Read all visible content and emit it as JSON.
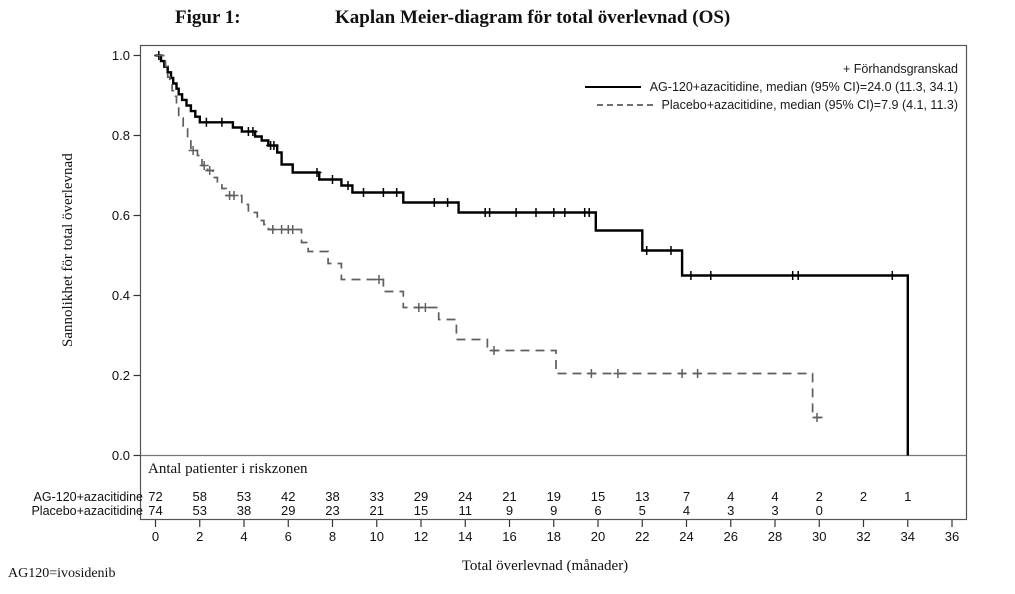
{
  "title": {
    "label": "Figur 1:",
    "text": "Kaplan Meier-diagram för total överlevnad (OS)"
  },
  "footnote": "AG120=ivosidenib",
  "chart_data": {
    "type": "line",
    "subtype": "kaplan-meier-step",
    "title": "Kaplan Meier-diagram för total överlevnad (OS)",
    "xlabel": "Total överlevnad (månader)",
    "ylabel": "Sannolikhet för total överlevnad",
    "xlim": [
      0,
      36
    ],
    "ylim": [
      0.0,
      1.0
    ],
    "x_ticks": [
      0,
      2,
      4,
      6,
      8,
      10,
      12,
      14,
      16,
      18,
      20,
      22,
      24,
      26,
      28,
      30,
      32,
      34,
      36
    ],
    "y_tick_labels": [
      "0.0",
      "0.2",
      "0.4",
      "0.6",
      "0.8",
      "1.0"
    ],
    "grid": false,
    "legend_position": "top-right-inside",
    "legend": {
      "censor_note": "+ Förhandsgranskad",
      "entries": [
        {
          "label": "AG-120+azacitidine, median (95% CI)=24.0 (11.3, 34.1)",
          "line": "solid",
          "color": "#000000"
        },
        {
          "label": "Placebo+azacitidine, median (95% CI)=7.9 (4.1, 11.3)",
          "line": "dashed",
          "color": "#5f5f5f"
        }
      ]
    },
    "series": [
      {
        "name": "AG-120+azacitidine",
        "line": "solid",
        "color": "#000000",
        "median_95ci": "24.0 (11.3, 34.1)",
        "steps": [
          [
            0,
            1.0
          ],
          [
            0.25,
            0.986
          ],
          [
            0.4,
            0.972
          ],
          [
            0.55,
            0.958
          ],
          [
            0.7,
            0.944
          ],
          [
            0.8,
            0.93
          ],
          [
            0.95,
            0.917
          ],
          [
            1.05,
            0.903
          ],
          [
            1.2,
            0.889
          ],
          [
            1.4,
            0.875
          ],
          [
            1.6,
            0.861
          ],
          [
            1.8,
            0.847
          ],
          [
            2.0,
            0.833
          ],
          [
            3.5,
            0.82
          ],
          [
            3.9,
            0.81
          ],
          [
            4.5,
            0.7975
          ],
          [
            4.8,
            0.7875
          ],
          [
            5.1,
            0.775
          ],
          [
            5.5,
            0.7575
          ],
          [
            5.7,
            0.7275
          ],
          [
            6.2,
            0.7075
          ],
          [
            7.4,
            0.69
          ],
          [
            8.4,
            0.675
          ],
          [
            8.9,
            0.6575
          ],
          [
            11.2,
            0.6325
          ],
          [
            13.7,
            0.6075
          ],
          [
            19.9,
            0.5625
          ],
          [
            22.0,
            0.5125
          ],
          [
            23.8,
            0.45
          ],
          [
            34.0,
            0.0
          ]
        ],
        "end_time": 34.0,
        "censors": [
          [
            0.15,
            1.0
          ],
          [
            2.3,
            0.833
          ],
          [
            3.0,
            0.833
          ],
          [
            4.2,
            0.81
          ],
          [
            4.4,
            0.81
          ],
          [
            5.2,
            0.775
          ],
          [
            5.35,
            0.775
          ],
          [
            7.3,
            0.7075
          ],
          [
            8.0,
            0.69
          ],
          [
            8.7,
            0.675
          ],
          [
            9.4,
            0.6575
          ],
          [
            10.3,
            0.6575
          ],
          [
            10.9,
            0.6575
          ],
          [
            12.6,
            0.6325
          ],
          [
            13.2,
            0.6325
          ],
          [
            14.9,
            0.6075
          ],
          [
            15.1,
            0.6075
          ],
          [
            16.3,
            0.6075
          ],
          [
            17.2,
            0.6075
          ],
          [
            18.0,
            0.6075
          ],
          [
            18.5,
            0.6075
          ],
          [
            19.4,
            0.6075
          ],
          [
            19.6,
            0.6075
          ],
          [
            22.2,
            0.5125
          ],
          [
            23.3,
            0.5125
          ],
          [
            24.2,
            0.45
          ],
          [
            25.1,
            0.45
          ],
          [
            28.8,
            0.45
          ],
          [
            29.05,
            0.45
          ],
          [
            33.3,
            0.45
          ]
        ]
      },
      {
        "name": "Placebo+azacitidine",
        "line": "dashed",
        "color": "#5f5f5f",
        "median_95ci": "7.9 (4.1, 11.3)",
        "steps": [
          [
            0,
            1.0
          ],
          [
            0.45,
            0.973
          ],
          [
            0.55,
            0.946
          ],
          [
            0.65,
            0.932
          ],
          [
            0.75,
            0.912
          ],
          [
            0.85,
            0.898
          ],
          [
            0.95,
            0.871
          ],
          [
            1.05,
            0.844
          ],
          [
            1.25,
            0.817
          ],
          [
            1.45,
            0.79
          ],
          [
            1.6,
            0.7625
          ],
          [
            1.9,
            0.75
          ],
          [
            2.1,
            0.725
          ],
          [
            2.35,
            0.7125
          ],
          [
            2.6,
            0.695
          ],
          [
            2.8,
            0.68
          ],
          [
            3.0,
            0.6675
          ],
          [
            3.2,
            0.65
          ],
          [
            3.9,
            0.6275
          ],
          [
            4.2,
            0.6075
          ],
          [
            4.6,
            0.5875
          ],
          [
            4.9,
            0.5775
          ],
          [
            5.1,
            0.565
          ],
          [
            6.6,
            0.5325
          ],
          [
            6.9,
            0.51
          ],
          [
            7.8,
            0.48
          ],
          [
            8.4,
            0.44
          ],
          [
            10.3,
            0.41
          ],
          [
            11.2,
            0.37
          ],
          [
            12.8,
            0.34
          ],
          [
            13.6,
            0.29
          ],
          [
            15.0,
            0.2625
          ],
          [
            18.1,
            0.205
          ],
          [
            29.7,
            0.095
          ]
        ],
        "end_time": 30.2,
        "censors": [
          [
            1.7,
            0.7625
          ],
          [
            2.2,
            0.725
          ],
          [
            2.45,
            0.7125
          ],
          [
            3.35,
            0.65
          ],
          [
            3.55,
            0.65
          ],
          [
            5.3,
            0.565
          ],
          [
            5.7,
            0.565
          ],
          [
            6.0,
            0.565
          ],
          [
            6.2,
            0.565
          ],
          [
            10.1,
            0.44
          ],
          [
            11.9,
            0.37
          ],
          [
            12.2,
            0.37
          ],
          [
            15.3,
            0.2625
          ],
          [
            19.7,
            0.205
          ],
          [
            20.9,
            0.205
          ],
          [
            23.8,
            0.205
          ],
          [
            24.5,
            0.205
          ],
          [
            29.9,
            0.095
          ]
        ]
      }
    ],
    "risk_table": {
      "header": "Antal patienter i riskzonen",
      "times": [
        0,
        2,
        4,
        6,
        8,
        10,
        12,
        14,
        16,
        18,
        20,
        22,
        24,
        26,
        28,
        30,
        32,
        34,
        36
      ],
      "rows": [
        {
          "label": "AG-120+azacitidine",
          "counts": [
            72,
            58,
            53,
            42,
            38,
            33,
            29,
            24,
            21,
            19,
            15,
            13,
            7,
            4,
            4,
            2,
            2,
            1,
            null
          ]
        },
        {
          "label": "Placebo+azacitidine",
          "counts": [
            74,
            53,
            38,
            29,
            23,
            21,
            15,
            11,
            9,
            9,
            6,
            5,
            4,
            3,
            3,
            0,
            null,
            null,
            null
          ]
        }
      ]
    }
  }
}
